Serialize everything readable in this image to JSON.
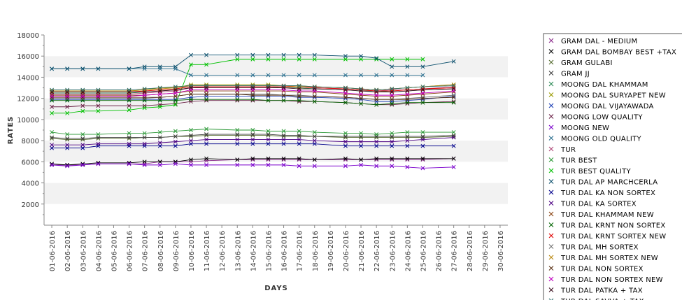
{
  "chart_data": {
    "type": "line",
    "xlabel": "DAYS",
    "ylabel": "RATES",
    "ylim": [
      0,
      18000
    ],
    "yticks": [
      2000,
      4000,
      6000,
      8000,
      10000,
      12000,
      14000,
      16000,
      18000
    ],
    "grid": "alternating horizontal bands",
    "legend_position": "right",
    "x": [
      "01-06-2016",
      "02-06-2016",
      "03-06-2016",
      "04-06-2016",
      "05-06-2016",
      "06-06-2016",
      "07-06-2016",
      "08-06-2016",
      "09-06-2016",
      "10-06-2016",
      "11-06-2016",
      "12-06-2016",
      "13-06-2016",
      "14-06-2016",
      "15-06-2016",
      "16-06-2016",
      "17-06-2016",
      "18-06-2016",
      "19-06-2016",
      "20-06-2016",
      "21-06-2016",
      "22-06-2016",
      "23-06-2016",
      "24-06-2016",
      "25-06-2016",
      "26-06-2016",
      "27-06-2016",
      "28-06-2016",
      "29-06-2016",
      "30-06-2016"
    ],
    "series": [
      {
        "name": "GRAM DAL - MEDIUM",
        "color": "#8b2b8b",
        "values": [
          5700,
          5700,
          5700,
          5800,
          null,
          5800,
          5800,
          6000,
          6000,
          6000,
          6100,
          null,
          6200,
          6200,
          6200,
          6200,
          6200,
          6200,
          null,
          6200,
          6200,
          6200,
          6200,
          6200,
          6200,
          null,
          6300,
          null,
          null,
          null
        ]
      },
      {
        "name": "GRAM DAL BOMBAY BEST +TAX",
        "color": "#000000",
        "values": [
          5800,
          5700,
          5800,
          5900,
          null,
          5900,
          6000,
          6000,
          6000,
          6200,
          6300,
          null,
          6200,
          6300,
          6300,
          6300,
          6300,
          6200,
          null,
          6300,
          6200,
          6300,
          6300,
          6300,
          6300,
          null,
          6300,
          null,
          null,
          null
        ]
      },
      {
        "name": "GRAM GULABI",
        "color": "#556b2f",
        "values": [
          8200,
          8100,
          8100,
          8200,
          null,
          8200,
          8300,
          8300,
          8400,
          8400,
          8500,
          null,
          8500,
          8500,
          8500,
          8400,
          8400,
          8400,
          null,
          8300,
          8300,
          8300,
          8300,
          8300,
          8300,
          null,
          8400,
          null,
          null,
          null
        ]
      },
      {
        "name": "GRAM JJ",
        "color": "#404040",
        "values": [
          8300,
          8200,
          8200,
          8300,
          null,
          8300,
          8300,
          8300,
          8400,
          8500,
          8600,
          null,
          8600,
          8600,
          8600,
          8500,
          8500,
          8400,
          null,
          8400,
          8400,
          8400,
          8400,
          8400,
          8400,
          null,
          8500,
          null,
          null,
          null
        ]
      },
      {
        "name": "MOONG DAL KHAMMAM",
        "color": "#2e8b57",
        "values": [
          12500,
          12500,
          12500,
          12500,
          null,
          12500,
          12600,
          12700,
          12800,
          13000,
          13100,
          null,
          13100,
          13100,
          13100,
          13000,
          13000,
          12900,
          null,
          12800,
          12700,
          12700,
          12600,
          12700,
          12800,
          null,
          12900,
          null,
          null,
          null
        ]
      },
      {
        "name": "MOONG DAL SURYAPET NEW",
        "color": "#9a9a00",
        "values": [
          12700,
          12700,
          12700,
          12700,
          null,
          12700,
          12800,
          13000,
          13000,
          13300,
          13300,
          null,
          13300,
          13300,
          13300,
          13200,
          13200,
          13100,
          null,
          13000,
          12900,
          12800,
          12900,
          13000,
          13100,
          null,
          13300,
          null,
          null,
          null
        ]
      },
      {
        "name": "MOONG DAL VIJAYAWADA",
        "color": "#1c3fb5",
        "values": [
          11900,
          11900,
          11900,
          11900,
          null,
          11900,
          11900,
          11900,
          11900,
          12100,
          12200,
          null,
          12200,
          12200,
          12200,
          12200,
          12100,
          12100,
          null,
          12000,
          11900,
          11700,
          11700,
          11800,
          11900,
          null,
          12200,
          null,
          null,
          null
        ]
      },
      {
        "name": "MOONG LOW QUALITY",
        "color": "#6b2147",
        "values": [
          11200,
          11200,
          11300,
          11300,
          null,
          11300,
          11300,
          11400,
          11500,
          11700,
          11800,
          null,
          11800,
          11800,
          11800,
          11800,
          11700,
          11700,
          null,
          11600,
          11500,
          11400,
          11400,
          11500,
          11600,
          null,
          11700,
          null,
          null,
          null
        ]
      },
      {
        "name": "MOONG NEW",
        "color": "#7a00cc",
        "values": [
          5700,
          5600,
          5700,
          5800,
          null,
          5800,
          5700,
          5700,
          5800,
          5700,
          5700,
          null,
          5700,
          5700,
          5700,
          5700,
          5600,
          5600,
          null,
          5600,
          5700,
          5600,
          5600,
          5500,
          5400,
          null,
          5500,
          null,
          null,
          null
        ]
      },
      {
        "name": "MOONG OLD QUALITY",
        "color": "#2a6f8f",
        "values": [
          14800,
          14800,
          14800,
          14800,
          null,
          14800,
          14800,
          14800,
          14800,
          14200,
          14200,
          null,
          14200,
          14200,
          14200,
          14200,
          14200,
          14200,
          null,
          14200,
          14200,
          14200,
          14200,
          14200,
          14200,
          null,
          null,
          null,
          null,
          null
        ]
      },
      {
        "name": "TUR",
        "color": "#b04a7a",
        "values": [
          12400,
          12400,
          12400,
          12400,
          null,
          12400,
          12500,
          12600,
          12700,
          13000,
          13100,
          null,
          13100,
          13100,
          13100,
          13100,
          13100,
          13000,
          null,
          12900,
          12800,
          12700,
          12800,
          12800,
          12900,
          null,
          13100,
          null,
          null,
          null
        ]
      },
      {
        "name": "TUR BEST",
        "color": "#2f9a3a",
        "values": [
          8800,
          8600,
          8600,
          8600,
          null,
          8700,
          8700,
          8800,
          8900,
          9000,
          9100,
          null,
          9000,
          9000,
          8900,
          8900,
          8900,
          8800,
          null,
          8700,
          8700,
          8600,
          8700,
          8800,
          8800,
          null,
          8800,
          null,
          null,
          null
        ]
      },
      {
        "name": "TUR BEST QUALITY",
        "color": "#00c000",
        "values": [
          10600,
          10600,
          10800,
          10800,
          null,
          10900,
          11100,
          11200,
          11400,
          15200,
          15200,
          null,
          15700,
          15700,
          15700,
          15700,
          15700,
          15700,
          null,
          15700,
          15700,
          15700,
          15700,
          15700,
          15700,
          null,
          null,
          null,
          null,
          null
        ]
      },
      {
        "name": "TUR DAL AP MARCHCERLA",
        "color": "#0b4f6c",
        "values": [
          14800,
          14800,
          14800,
          14800,
          null,
          14800,
          15000,
          15000,
          15000,
          16100,
          16100,
          null,
          16100,
          16100,
          16100,
          16100,
          16100,
          16100,
          null,
          16000,
          16000,
          15800,
          15000,
          15000,
          15000,
          null,
          15500,
          null,
          null,
          null
        ]
      },
      {
        "name": "TUR DAL KA NON SORTEX",
        "color": "#00008b",
        "values": [
          7300,
          7300,
          7300,
          7500,
          null,
          7500,
          7500,
          7500,
          7500,
          7700,
          7700,
          null,
          7700,
          7700,
          7700,
          7700,
          7700,
          7700,
          null,
          7500,
          7500,
          7500,
          7500,
          7500,
          7500,
          null,
          7500,
          null,
          null,
          null
        ]
      },
      {
        "name": "TUR DAL KA SORTEX",
        "color": "#4b0082",
        "values": [
          7600,
          7600,
          7600,
          7700,
          null,
          7700,
          7700,
          7800,
          7900,
          8000,
          8100,
          null,
          8100,
          8100,
          8100,
          8100,
          8100,
          8000,
          null,
          7900,
          7900,
          7900,
          7900,
          8000,
          8100,
          null,
          8300,
          null,
          null,
          null
        ]
      },
      {
        "name": "TUR DAL KHAMMAM NEW",
        "color": "#8b4513",
        "values": [
          12300,
          12300,
          12300,
          12300,
          null,
          12300,
          12300,
          12400,
          12500,
          12700,
          12700,
          null,
          12700,
          12700,
          12700,
          12700,
          12600,
          12600,
          null,
          12400,
          12300,
          12200,
          12200,
          12300,
          12400,
          null,
          12600,
          null,
          null,
          null
        ]
      },
      {
        "name": "TUR DAL KRNT NON SORTEX",
        "color": "#006400",
        "values": [
          11800,
          11800,
          11800,
          11800,
          null,
          11800,
          11800,
          11800,
          11800,
          11900,
          11900,
          null,
          11900,
          11900,
          11800,
          11800,
          11800,
          11700,
          null,
          11600,
          11500,
          11400,
          11500,
          11600,
          11600,
          null,
          11600,
          null,
          null,
          null
        ]
      },
      {
        "name": "TUR DAL KRNT SORTEX NEW",
        "color": "#e00000",
        "values": [
          12600,
          12600,
          12600,
          12600,
          null,
          12600,
          12700,
          12800,
          12900,
          13100,
          13100,
          null,
          13100,
          13100,
          13100,
          13100,
          13100,
          13000,
          null,
          12900,
          12800,
          12700,
          12700,
          12800,
          12900,
          null,
          13000,
          null,
          null,
          null
        ]
      },
      {
        "name": "TUR DAL MH SORTEX",
        "color": "#707070",
        "values": [
          12000,
          12000,
          12000,
          12000,
          null,
          12000,
          12000,
          12100,
          12200,
          12400,
          12400,
          null,
          12400,
          12400,
          12400,
          12300,
          12300,
          12200,
          null,
          12100,
          12000,
          11900,
          11900,
          12000,
          12100,
          null,
          12300,
          null,
          null,
          null
        ]
      },
      {
        "name": "TUR DAL MH SORTEX NEW",
        "color": "#b8860b",
        "values": [
          12700,
          12700,
          12700,
          12700,
          null,
          12700,
          12800,
          12900,
          13000,
          13200,
          13200,
          null,
          13200,
          13200,
          13200,
          13200,
          13100,
          13100,
          null,
          13000,
          12900,
          12800,
          12900,
          13000,
          13100,
          null,
          13300,
          null,
          null,
          null
        ]
      },
      {
        "name": "TUR DAL NON SORTEX",
        "color": "#5c3317",
        "values": [
          12100,
          12100,
          12100,
          12100,
          null,
          12100,
          12100,
          12100,
          12200,
          12400,
          12400,
          null,
          12400,
          12300,
          12300,
          12300,
          12200,
          12200,
          null,
          12100,
          12000,
          11900,
          11900,
          11900,
          12000,
          null,
          12100,
          null,
          null,
          null
        ]
      },
      {
        "name": "TUR DAL NON SORTEX NEW",
        "color": "#c000c0",
        "values": [
          12200,
          12200,
          12200,
          12200,
          null,
          12200,
          12300,
          12400,
          12500,
          12800,
          12800,
          null,
          12800,
          12800,
          12800,
          12800,
          12700,
          12700,
          null,
          12500,
          12400,
          12300,
          12300,
          12400,
          12500,
          null,
          12700,
          null,
          null,
          null
        ]
      },
      {
        "name": "TUR DAL PATKA + TAX",
        "color": "#3b0f1f",
        "values": [
          12600,
          12600,
          12600,
          12600,
          null,
          12600,
          12600,
          12700,
          12800,
          13000,
          13000,
          null,
          13000,
          13000,
          13000,
          13000,
          12900,
          12900,
          null,
          12800,
          12700,
          12600,
          12600,
          12700,
          12800,
          null,
          12900,
          null,
          null,
          null
        ]
      },
      {
        "name": "TUR DAL SAVVA + TAX",
        "color": "#2f6f6f",
        "values": [
          12800,
          12800,
          12800,
          12800,
          null,
          12800,
          12900,
          13000,
          13100,
          13200,
          13200,
          null,
          13200,
          13200,
          13200,
          13200,
          13200,
          13100,
          null,
          13000,
          12900,
          12800,
          12900,
          13000,
          13100,
          null,
          13200,
          null,
          null,
          null
        ]
      }
    ]
  }
}
